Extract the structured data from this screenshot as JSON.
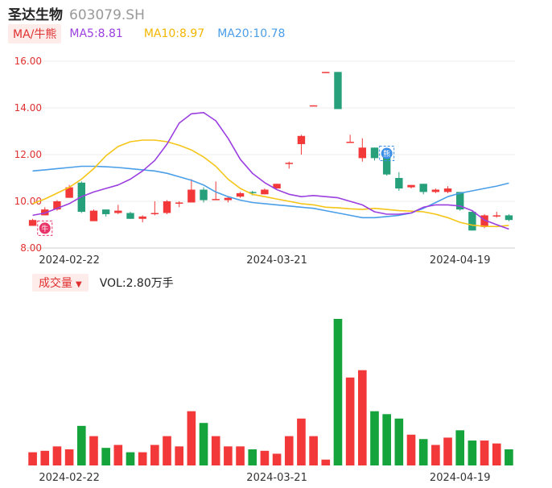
{
  "header": {
    "name": "圣达生物",
    "code": "603079.SH"
  },
  "legend": {
    "ma_tag": "MA/牛熊",
    "ma5_label": "MA5:8.81",
    "ma10_label": "MA10:8.97",
    "ma20_label": "MA20:10.78"
  },
  "volume_legend": {
    "tag": "成交量",
    "caret": "▼",
    "vol_label": "VOL:2.80万手"
  },
  "colors": {
    "up": "#f23838",
    "down": "#15a33b",
    "down_price": "#26a07a",
    "ma5": "#9b3fe0",
    "ma10": "#f5c518",
    "ma20": "#4a9ee8"
  },
  "markers": [
    {
      "label": "牛",
      "index": 1,
      "color": "#e8346a",
      "icon": "bull-marker-icon"
    },
    {
      "label": "熊",
      "index": 29,
      "color": "#3a8ee8",
      "icon": "bear-marker-icon"
    }
  ],
  "chart_data": [
    {
      "type": "candlestick",
      "y_ticks": [
        "16.00",
        "14.00",
        "12.00",
        "10.00",
        "8.00"
      ],
      "ylim": [
        8.0,
        16.0
      ],
      "x_tick_labels": [
        {
          "index": 3,
          "label": "2024-02-22"
        },
        {
          "index": 20,
          "label": "2024-03-21"
        },
        {
          "index": 35,
          "label": "2024-04-19"
        }
      ],
      "candles": [
        {
          "o": 8.95,
          "h": 9.25,
          "l": 8.95,
          "c": 9.2
        },
        {
          "o": 9.4,
          "h": 9.75,
          "l": 9.4,
          "c": 9.65
        },
        {
          "o": 9.65,
          "h": 10.05,
          "l": 9.6,
          "c": 10.0
        },
        {
          "o": 10.15,
          "h": 10.7,
          "l": 10.15,
          "c": 10.6
        },
        {
          "o": 10.8,
          "h": 10.85,
          "l": 9.5,
          "c": 9.55
        },
        {
          "o": 9.15,
          "h": 9.65,
          "l": 9.15,
          "c": 9.6
        },
        {
          "o": 9.65,
          "h": 9.65,
          "l": 9.35,
          "c": 9.45
        },
        {
          "o": 9.5,
          "h": 9.85,
          "l": 9.45,
          "c": 9.6
        },
        {
          "o": 9.5,
          "h": 9.55,
          "l": 9.25,
          "c": 9.25
        },
        {
          "o": 9.25,
          "h": 9.4,
          "l": 9.1,
          "c": 9.35
        },
        {
          "o": 9.45,
          "h": 10.0,
          "l": 9.4,
          "c": 9.5
        },
        {
          "o": 9.5,
          "h": 10.05,
          "l": 9.45,
          "c": 10.0
        },
        {
          "o": 9.95,
          "h": 10.0,
          "l": 9.75,
          "c": 9.95
        },
        {
          "o": 9.95,
          "h": 10.95,
          "l": 9.95,
          "c": 10.5
        },
        {
          "o": 10.5,
          "h": 10.6,
          "l": 9.95,
          "c": 10.05
        },
        {
          "o": 10.1,
          "h": 10.85,
          "l": 10.05,
          "c": 10.1
        },
        {
          "o": 10.05,
          "h": 10.2,
          "l": 9.95,
          "c": 10.15
        },
        {
          "o": 10.2,
          "h": 10.4,
          "l": 10.15,
          "c": 10.35
        },
        {
          "o": 10.4,
          "h": 10.45,
          "l": 10.25,
          "c": 10.35
        },
        {
          "o": 10.3,
          "h": 10.55,
          "l": 10.3,
          "c": 10.5
        },
        {
          "o": 10.55,
          "h": 10.75,
          "l": 10.55,
          "c": 10.75
        },
        {
          "o": 11.6,
          "h": 11.7,
          "l": 11.4,
          "c": 11.65
        },
        {
          "o": 12.45,
          "h": 12.85,
          "l": 12.0,
          "c": 12.8
        },
        {
          "o": 14.09,
          "h": 14.11,
          "l": 14.09,
          "c": 14.11
        },
        {
          "o": 15.52,
          "h": 15.54,
          "l": 15.52,
          "c": 15.54
        },
        {
          "o": 15.54,
          "h": 15.54,
          "l": 13.95,
          "c": 13.95
        },
        {
          "o": 12.55,
          "h": 12.85,
          "l": 12.5,
          "c": 12.55
        },
        {
          "o": 11.85,
          "h": 12.7,
          "l": 11.7,
          "c": 12.3
        },
        {
          "o": 12.3,
          "h": 12.3,
          "l": 11.75,
          "c": 11.85
        },
        {
          "o": 11.9,
          "h": 12.05,
          "l": 11.1,
          "c": 11.15
        },
        {
          "o": 11.0,
          "h": 11.25,
          "l": 10.45,
          "c": 10.55
        },
        {
          "o": 10.6,
          "h": 10.7,
          "l": 10.55,
          "c": 10.7
        },
        {
          "o": 10.75,
          "h": 10.75,
          "l": 10.3,
          "c": 10.4
        },
        {
          "o": 10.4,
          "h": 10.55,
          "l": 10.35,
          "c": 10.5
        },
        {
          "o": 10.4,
          "h": 10.65,
          "l": 10.35,
          "c": 10.55
        },
        {
          "o": 10.4,
          "h": 10.4,
          "l": 9.6,
          "c": 9.65
        },
        {
          "o": 9.55,
          "h": 9.6,
          "l": 8.75,
          "c": 8.75
        },
        {
          "o": 8.9,
          "h": 9.45,
          "l": 8.85,
          "c": 9.4
        },
        {
          "o": 9.35,
          "h": 9.55,
          "l": 9.3,
          "c": 9.4
        },
        {
          "o": 9.4,
          "h": 9.45,
          "l": 9.15,
          "c": 9.2
        }
      ],
      "ma5": [
        9.4,
        9.5,
        9.7,
        9.9,
        10.2,
        10.4,
        10.55,
        10.7,
        10.95,
        11.3,
        11.75,
        12.45,
        13.35,
        13.75,
        13.8,
        13.45,
        12.7,
        11.8,
        11.2,
        10.8,
        10.5,
        10.3,
        10.2,
        10.25,
        10.2,
        10.15,
        10.0,
        9.85,
        9.55,
        9.45,
        9.45,
        9.5,
        9.75,
        9.85,
        9.85,
        9.8,
        9.6,
        9.2,
        9.0,
        8.81
      ],
      "ma10": [
        9.9,
        10.1,
        10.35,
        10.6,
        10.95,
        11.4,
        11.95,
        12.35,
        12.55,
        12.62,
        12.62,
        12.55,
        12.4,
        12.2,
        11.9,
        11.5,
        10.95,
        10.55,
        10.3,
        10.2,
        10.1,
        10.0,
        9.9,
        9.85,
        9.75,
        9.72,
        9.68,
        9.65,
        9.7,
        9.65,
        9.6,
        9.58,
        9.55,
        9.45,
        9.3,
        9.1,
        8.98,
        8.93,
        8.92,
        8.97
      ],
      "ma20": [
        11.3,
        11.35,
        11.4,
        11.45,
        11.5,
        11.5,
        11.48,
        11.45,
        11.4,
        11.35,
        11.3,
        11.2,
        11.05,
        10.9,
        10.7,
        10.4,
        10.2,
        10.05,
        9.95,
        9.9,
        9.85,
        9.8,
        9.75,
        9.7,
        9.6,
        9.5,
        9.4,
        9.3,
        9.3,
        9.35,
        9.4,
        9.5,
        9.7,
        9.95,
        10.2,
        10.35,
        10.45,
        10.55,
        10.65,
        10.78
      ]
    },
    {
      "type": "bar",
      "ylabel": "",
      "volume_heights": [
        0.09,
        0.1,
        0.13,
        0.11,
        0.27,
        0.2,
        0.12,
        0.14,
        0.09,
        0.09,
        0.14,
        0.2,
        0.13,
        0.37,
        0.29,
        0.2,
        0.13,
        0.13,
        0.11,
        0.1,
        0.08,
        0.2,
        0.32,
        0.2,
        0.04,
        1.0,
        0.6,
        0.65,
        0.37,
        0.35,
        0.32,
        0.21,
        0.18,
        0.14,
        0.19,
        0.24,
        0.17,
        0.17,
        0.15,
        0.11
      ]
    }
  ]
}
